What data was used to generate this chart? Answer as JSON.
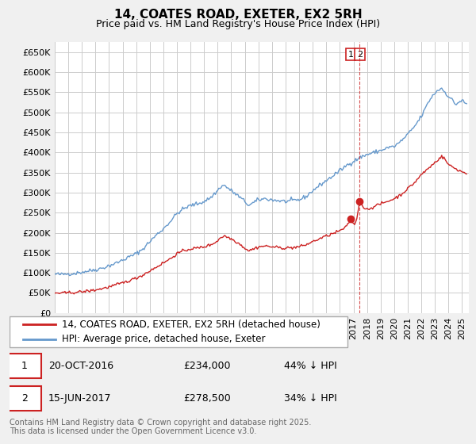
{
  "title": "14, COATES ROAD, EXETER, EX2 5RH",
  "subtitle": "Price paid vs. HM Land Registry's House Price Index (HPI)",
  "ylim": [
    0,
    675000
  ],
  "yticks": [
    0,
    50000,
    100000,
    150000,
    200000,
    250000,
    300000,
    350000,
    400000,
    450000,
    500000,
    550000,
    600000,
    650000
  ],
  "yticklabels": [
    "£0",
    "£50K",
    "£100K",
    "£150K",
    "£200K",
    "£250K",
    "£300K",
    "£350K",
    "£400K",
    "£450K",
    "£500K",
    "£550K",
    "£600K",
    "£650K"
  ],
  "xlim_start": 1995.0,
  "xlim_end": 2025.5,
  "background_color": "#f0f0f0",
  "plot_bg_color": "#ffffff",
  "grid_color": "#cccccc",
  "hpi_color": "#6699cc",
  "price_color": "#cc2222",
  "marker1_date": 2016.8,
  "marker1_price": 234000,
  "marker2_date": 2017.45,
  "marker2_price": 278500,
  "legend1": "14, COATES ROAD, EXETER, EX2 5RH (detached house)",
  "legend2": "HPI: Average price, detached house, Exeter",
  "footer": "Contains HM Land Registry data © Crown copyright and database right 2025.\nThis data is licensed under the Open Government Licence v3.0.",
  "title_fontsize": 11,
  "subtitle_fontsize": 9,
  "tick_fontsize": 8,
  "legend_fontsize": 8.5,
  "footer_fontsize": 7,
  "hpi_anchors": [
    [
      1995.0,
      97000
    ],
    [
      1995.5,
      96000
    ],
    [
      1996.0,
      98000
    ],
    [
      1996.5,
      99000
    ],
    [
      1997.0,
      102000
    ],
    [
      1997.5,
      105000
    ],
    [
      1998.0,
      108000
    ],
    [
      1998.5,
      112000
    ],
    [
      1999.0,
      118000
    ],
    [
      1999.5,
      124000
    ],
    [
      2000.0,
      132000
    ],
    [
      2000.5,
      140000
    ],
    [
      2001.0,
      148000
    ],
    [
      2001.5,
      160000
    ],
    [
      2002.0,
      178000
    ],
    [
      2002.5,
      195000
    ],
    [
      2003.0,
      210000
    ],
    [
      2003.5,
      228000
    ],
    [
      2004.0,
      248000
    ],
    [
      2004.5,
      260000
    ],
    [
      2005.0,
      268000
    ],
    [
      2005.5,
      272000
    ],
    [
      2006.0,
      278000
    ],
    [
      2006.5,
      288000
    ],
    [
      2007.0,
      305000
    ],
    [
      2007.2,
      315000
    ],
    [
      2007.5,
      318000
    ],
    [
      2007.8,
      310000
    ],
    [
      2008.0,
      305000
    ],
    [
      2008.5,
      292000
    ],
    [
      2009.0,
      278000
    ],
    [
      2009.3,
      268000
    ],
    [
      2009.5,
      272000
    ],
    [
      2009.8,
      278000
    ],
    [
      2010.0,
      282000
    ],
    [
      2010.5,
      285000
    ],
    [
      2011.0,
      282000
    ],
    [
      2011.5,
      280000
    ],
    [
      2012.0,
      278000
    ],
    [
      2012.5,
      280000
    ],
    [
      2013.0,
      282000
    ],
    [
      2013.5,
      290000
    ],
    [
      2014.0,
      305000
    ],
    [
      2014.5,
      318000
    ],
    [
      2015.0,
      330000
    ],
    [
      2015.5,
      342000
    ],
    [
      2016.0,
      355000
    ],
    [
      2016.5,
      368000
    ],
    [
      2017.0,
      378000
    ],
    [
      2017.5,
      388000
    ],
    [
      2018.0,
      395000
    ],
    [
      2018.5,
      400000
    ],
    [
      2019.0,
      405000
    ],
    [
      2019.5,
      412000
    ],
    [
      2020.0,
      415000
    ],
    [
      2020.5,
      428000
    ],
    [
      2021.0,
      445000
    ],
    [
      2021.5,
      465000
    ],
    [
      2022.0,
      490000
    ],
    [
      2022.3,
      510000
    ],
    [
      2022.5,
      525000
    ],
    [
      2022.8,
      540000
    ],
    [
      2023.0,
      548000
    ],
    [
      2023.2,
      555000
    ],
    [
      2023.5,
      560000
    ],
    [
      2023.8,
      548000
    ],
    [
      2024.0,
      540000
    ],
    [
      2024.3,
      530000
    ],
    [
      2024.5,
      520000
    ],
    [
      2025.0,
      530000
    ],
    [
      2025.3,
      520000
    ]
  ],
  "price_anchors": [
    [
      1995.0,
      50000
    ],
    [
      1995.5,
      49500
    ],
    [
      1996.0,
      50500
    ],
    [
      1996.5,
      51500
    ],
    [
      1997.0,
      53000
    ],
    [
      1997.5,
      55000
    ],
    [
      1998.0,
      57500
    ],
    [
      1998.5,
      61000
    ],
    [
      1999.0,
      65000
    ],
    [
      1999.5,
      70000
    ],
    [
      2000.0,
      75000
    ],
    [
      2000.5,
      81000
    ],
    [
      2001.0,
      87000
    ],
    [
      2001.5,
      95000
    ],
    [
      2002.0,
      105000
    ],
    [
      2002.5,
      115000
    ],
    [
      2003.0,
      125000
    ],
    [
      2003.5,
      135000
    ],
    [
      2004.0,
      148000
    ],
    [
      2004.5,
      155000
    ],
    [
      2005.0,
      160000
    ],
    [
      2005.5,
      162000
    ],
    [
      2006.0,
      165000
    ],
    [
      2006.5,
      170000
    ],
    [
      2007.0,
      180000
    ],
    [
      2007.2,
      188000
    ],
    [
      2007.5,
      192000
    ],
    [
      2007.8,
      188000
    ],
    [
      2008.0,
      185000
    ],
    [
      2008.5,
      175000
    ],
    [
      2009.0,
      162000
    ],
    [
      2009.3,
      155000
    ],
    [
      2009.5,
      158000
    ],
    [
      2009.8,
      162000
    ],
    [
      2010.0,
      165000
    ],
    [
      2010.5,
      167000
    ],
    [
      2011.0,
      165000
    ],
    [
      2011.5,
      163000
    ],
    [
      2012.0,
      162000
    ],
    [
      2012.5,
      163000
    ],
    [
      2013.0,
      165000
    ],
    [
      2013.5,
      170000
    ],
    [
      2014.0,
      178000
    ],
    [
      2014.5,
      185000
    ],
    [
      2015.0,
      192000
    ],
    [
      2015.5,
      198000
    ],
    [
      2016.0,
      205000
    ],
    [
      2016.5,
      215000
    ],
    [
      2016.8,
      234000
    ],
    [
      2016.85,
      230000
    ],
    [
      2016.9,
      226000
    ],
    [
      2017.0,
      222000
    ],
    [
      2017.2,
      225000
    ],
    [
      2017.45,
      278500
    ],
    [
      2017.5,
      275000
    ],
    [
      2017.7,
      265000
    ],
    [
      2018.0,
      258000
    ],
    [
      2018.5,
      265000
    ],
    [
      2019.0,
      272000
    ],
    [
      2019.5,
      278000
    ],
    [
      2020.0,
      285000
    ],
    [
      2020.5,
      295000
    ],
    [
      2021.0,
      310000
    ],
    [
      2021.5,
      325000
    ],
    [
      2022.0,
      345000
    ],
    [
      2022.5,
      360000
    ],
    [
      2023.0,
      375000
    ],
    [
      2023.3,
      385000
    ],
    [
      2023.5,
      390000
    ],
    [
      2023.7,
      385000
    ],
    [
      2024.0,
      370000
    ],
    [
      2024.5,
      360000
    ],
    [
      2025.0,
      352000
    ],
    [
      2025.3,
      348000
    ]
  ]
}
